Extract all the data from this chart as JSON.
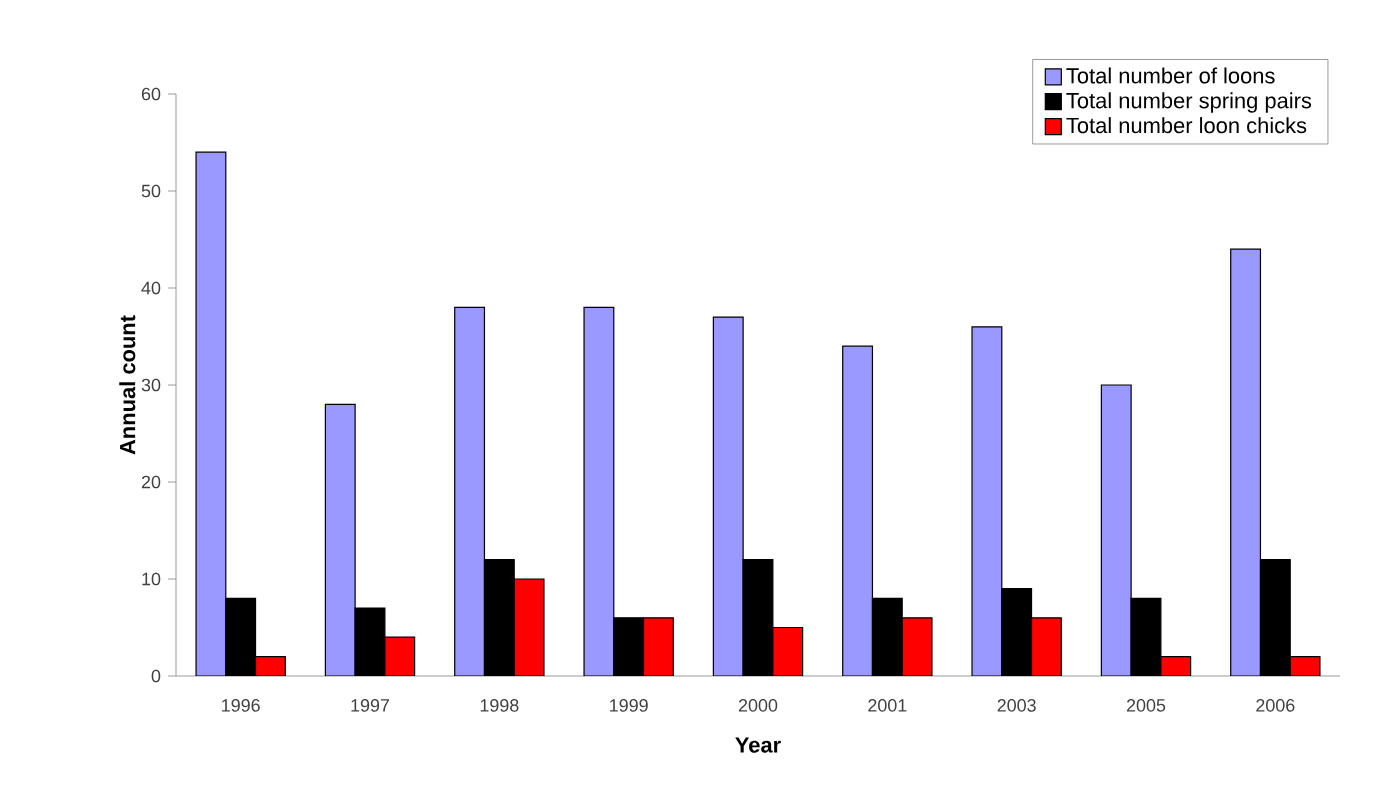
{
  "chart_data": {
    "type": "bar",
    "xlabel": "Year",
    "ylabel": "Annual count",
    "categories": [
      "1996",
      "1997",
      "1998",
      "1999",
      "2000",
      "2001",
      "2003",
      "2005",
      "2006"
    ],
    "series": [
      {
        "name": "Total number of loons",
        "color": "#9999ff",
        "values": [
          54,
          28,
          38,
          38,
          37,
          34,
          36,
          30,
          44
        ]
      },
      {
        "name": "Total number spring pairs",
        "color": "#000000",
        "values": [
          8,
          7,
          12,
          6,
          12,
          8,
          9,
          8,
          12
        ]
      },
      {
        "name": "Total number loon chicks",
        "color": "#ff0000",
        "values": [
          2,
          4,
          10,
          6,
          5,
          6,
          6,
          2,
          2
        ]
      }
    ],
    "ylim": [
      0,
      60
    ],
    "yticks": [
      0,
      10,
      20,
      30,
      40,
      50,
      60
    ],
    "legend": "top right"
  }
}
